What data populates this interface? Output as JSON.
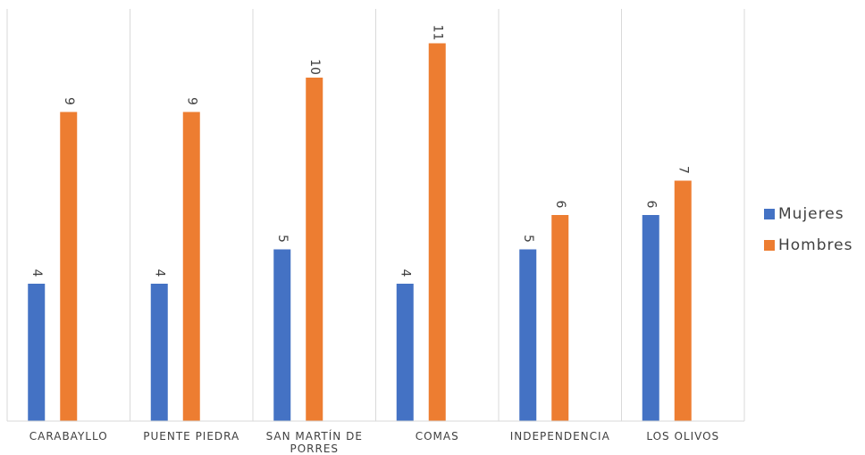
{
  "chart_data": {
    "type": "bar",
    "title": "",
    "xlabel": "",
    "ylabel": "",
    "categories": [
      "CARABAYLLO",
      "PUENTE PIEDRA",
      "SAN MARTÍN DE PORRES",
      "COMAS",
      "INDEPENDENCIA",
      "LOS OLIVOS"
    ],
    "series": [
      {
        "name": "Mujeres",
        "color": "#4472C4",
        "values": [
          4,
          4,
          5,
          4,
          5,
          6
        ]
      },
      {
        "name": "Hombres",
        "color": "#ED7D31",
        "values": [
          9,
          9,
          10,
          11,
          6,
          7
        ]
      }
    ],
    "ylim": [
      0,
      12
    ],
    "grid": "vertical-separators",
    "legend": "right",
    "data_labels": true
  }
}
